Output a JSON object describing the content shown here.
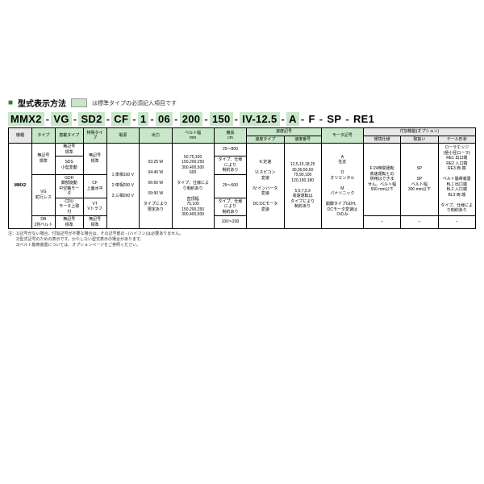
{
  "title": {
    "bullet": "■",
    "text": "型式表示方法",
    "swatch_bg": "#c8e6c9",
    "swatch_note": "は標準タイプの必須記入項目です"
  },
  "model": {
    "segs": [
      "MMX2",
      "VG",
      "SD2",
      "CF",
      "1",
      "06",
      "200",
      "150",
      "IV-12.5",
      "A",
      "F",
      "SP",
      "RE1"
    ],
    "dash": "-",
    "hl_bg": "#c8e6c9",
    "hl_idx": [
      0,
      1,
      2,
      3,
      4,
      5,
      6,
      7,
      8,
      9
    ]
  },
  "headers": {
    "row1": [
      "機種",
      "タイプ",
      "搭載タイプ",
      "特殊タイプ",
      "電源",
      "出力",
      "ベルト幅\nmm",
      "機長\ncm",
      "速度記号",
      "",
      "モータ記号",
      "付加機能(オプション)",
      "",
      ""
    ],
    "row2_speed": [
      "速度タイプ",
      "速度番号"
    ],
    "row2_option": [
      "環境仕様",
      "取扱い",
      "テール形状"
    ]
  },
  "cells": {
    "kishu": "MMX2",
    "type1": "無記号\n標準",
    "type2": "VG\n蛇行レス",
    "type3": "DB\n2列ベルト",
    "mount1": "無記号\n標準",
    "mount2": "SDS\n小型変動",
    "mount3": "GDH\n脚部旋動\n中空軸モータ",
    "mount4": "CDU\nモータ上取付",
    "mount5": "無記号\n標準",
    "spec1": "無記号\n標準",
    "spec2": "CF\n上面水平",
    "spec3": "VT\nVトラフ",
    "spec4": "無記号\n標準",
    "power": "1:単相100 V\n\n2:単相200 V\n\n3:三相200 V",
    "output": "03:25 W\n\n04:40 W\n\n06:60 W\n\n09:90 W\n\nタイプにより\n限定あり",
    "belt": "50,75,100\n150,200,250\n300,400,500\n600\n\nタイプ、仕様によ\nり制約あり\n\n直頂幅\n75,100\n150,200,250\n300,400,500",
    "len1": "25〜800",
    "len2": "タイプ、仕様\nにより\n制約あり",
    "len3": "25〜600",
    "len4": "タイプ、仕様\nにより\n制約あり",
    "len5": "100〜200",
    "speed_type": "K:定速\n\nU:スピコン\n変速\n\nIV:インバータ\n変速\n\nDC:DCモータ\n変速",
    "speed_num": "12,5,15,18,25\n30,36,50,60\n75,90,100\n120,150,180\n\n5,5,7,5,9\n高速運転は\nタイプにより\n制約あり",
    "motor": "A\n住友\n\nO\nオリエンタル\n\nM\nパナソニック\n\n開脚タイプGDH、\nDCモータ変速は\nOのみ",
    "env": "F:24時間運転\n高速運転との\n併用はできま\nせん。ベルト幅\n500 mm以下",
    "handle": "SP\n\nSP\nベルト幅\n300 mm以下",
    "tail": "ローラエッジ\n(極小径ローラ)\nRE1 出口端\nRE2 入口端\nRE3 両 端\n\nベルト脇寄装置\nBL1 出口端\nBL2 入口端\nBL3 両 端\n\nタイプ、仕様によ\nり制約あり",
    "dash": "−"
  },
  "notes": [
    "注：1)記号がない場合、付加記号が不要な場合は、その記号部の - (ハイフン)は必要ありません。",
    "　　2)型式記号のための表示です。かたしない型式表示の場合があります。",
    "　　3)ベルト脇寄装置については、オプションページをご参照ください。"
  ]
}
